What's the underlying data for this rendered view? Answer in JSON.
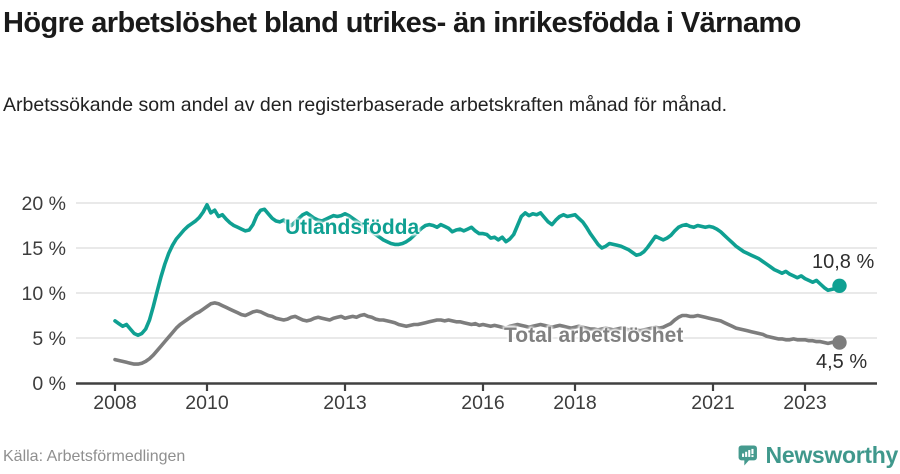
{
  "header": {
    "title": "Högre arbetslöshet bland utrikes- än inrikesfödda i Värnamo",
    "subtitle": "Arbetssökande som andel av den registerbaserade arbetskraften månad för månad."
  },
  "footer": {
    "source": "Källa: Arbetsförmedlingen",
    "brand": "Newsworthy"
  },
  "colors": {
    "foreign_born_line": "#0fa092",
    "total_line": "#7d7d7d",
    "total_label": "#808080",
    "grid": "#dcdcdc",
    "axis": "#404040",
    "tick_text": "#3d3d3d",
    "brand_teal": "#3f988c"
  },
  "chart_data": {
    "type": "line",
    "title": "Högre arbetslöshet bland utrikes- än inrikesfödda i Värnamo",
    "subtitle": "Arbetssökande som andel av den registerbaserade arbetskraften månad för månad.",
    "source": "Källa: Arbetsförmedlingen",
    "x_start_year": 2008,
    "x_frequency": "monthly",
    "x_end": "2023-10",
    "x_ticks": [
      2008,
      2010,
      2013,
      2016,
      2018,
      2021,
      2023
    ],
    "x_tick_labels": [
      "2008",
      "2010",
      "2013",
      "2016",
      "2018",
      "2021",
      "2023"
    ],
    "y_ticks": [
      0,
      5,
      10,
      15,
      20
    ],
    "y_tick_labels": [
      "0 %",
      "5 %",
      "10 %",
      "15 %",
      "20 %"
    ],
    "ylim": [
      0,
      21
    ],
    "grid": true,
    "legend_position": "inline-labels",
    "series": [
      {
        "name": "Utlandsfödda",
        "color": "#0fa092",
        "end_value": 10.8,
        "end_label": "10,8 %",
        "values": [
          6.9,
          6.6,
          6.3,
          6.5,
          6.0,
          5.5,
          5.3,
          5.5,
          6.0,
          7.0,
          8.5,
          10.2,
          11.8,
          13.2,
          14.4,
          15.3,
          16.0,
          16.5,
          17.0,
          17.4,
          17.7,
          18.0,
          18.4,
          19.0,
          19.8,
          18.9,
          19.2,
          18.5,
          18.7,
          18.2,
          17.8,
          17.5,
          17.3,
          17.1,
          16.9,
          17.0,
          17.6,
          18.6,
          19.2,
          19.3,
          18.8,
          18.3,
          18.0,
          17.9,
          18.1,
          17.7,
          17.5,
          17.9,
          18.3,
          18.7,
          18.9,
          18.6,
          18.3,
          18.1,
          18.0,
          18.2,
          18.4,
          18.6,
          18.5,
          18.6,
          18.8,
          18.6,
          18.3,
          18.0,
          17.7,
          17.4,
          17.1,
          16.8,
          16.5,
          16.2,
          15.9,
          15.7,
          15.5,
          15.4,
          15.4,
          15.5,
          15.7,
          16.0,
          16.4,
          16.8,
          17.2,
          17.5,
          17.6,
          17.5,
          17.3,
          17.6,
          17.4,
          17.2,
          16.8,
          17.0,
          17.1,
          16.9,
          17.1,
          17.3,
          16.9,
          16.6,
          16.6,
          16.5,
          16.1,
          16.2,
          15.9,
          16.2,
          15.7,
          16.0,
          16.5,
          17.5,
          18.5,
          18.9,
          18.6,
          18.8,
          18.7,
          18.9,
          18.4,
          17.9,
          17.6,
          18.1,
          18.5,
          18.7,
          18.5,
          18.6,
          18.7,
          18.3,
          17.9,
          17.3,
          16.6,
          16.0,
          15.4,
          15.0,
          15.2,
          15.5,
          15.4,
          15.3,
          15.2,
          15.0,
          14.8,
          14.5,
          14.2,
          14.3,
          14.6,
          15.1,
          15.7,
          16.3,
          16.1,
          15.9,
          16.1,
          16.4,
          16.9,
          17.3,
          17.5,
          17.6,
          17.4,
          17.3,
          17.5,
          17.4,
          17.3,
          17.4,
          17.3,
          17.1,
          16.8,
          16.4,
          16.0,
          15.6,
          15.2,
          14.9,
          14.6,
          14.4,
          14.2,
          14.0,
          13.8,
          13.5,
          13.2,
          12.9,
          12.6,
          12.4,
          12.2,
          12.4,
          12.1,
          11.9,
          11.7,
          11.9,
          11.6,
          11.4,
          11.2,
          11.4,
          11.0,
          10.6,
          10.3,
          10.4,
          10.5,
          10.8
        ]
      },
      {
        "name": "Total arbetslöshet",
        "color": "#7d7d7d",
        "end_value": 4.5,
        "end_label": "4,5 %",
        "values": [
          2.6,
          2.5,
          2.4,
          2.3,
          2.2,
          2.1,
          2.1,
          2.2,
          2.4,
          2.7,
          3.1,
          3.6,
          4.1,
          4.6,
          5.1,
          5.6,
          6.1,
          6.5,
          6.8,
          7.1,
          7.4,
          7.7,
          7.9,
          8.2,
          8.5,
          8.8,
          8.9,
          8.8,
          8.6,
          8.4,
          8.2,
          8.0,
          7.8,
          7.6,
          7.5,
          7.7,
          7.9,
          8.0,
          7.9,
          7.7,
          7.5,
          7.4,
          7.2,
          7.1,
          7.0,
          7.1,
          7.3,
          7.4,
          7.2,
          7.0,
          6.9,
          7.0,
          7.2,
          7.3,
          7.2,
          7.1,
          7.0,
          7.2,
          7.3,
          7.4,
          7.2,
          7.3,
          7.4,
          7.3,
          7.5,
          7.6,
          7.4,
          7.3,
          7.1,
          7.0,
          7.0,
          6.9,
          6.8,
          6.7,
          6.5,
          6.4,
          6.3,
          6.4,
          6.5,
          6.5,
          6.6,
          6.7,
          6.8,
          6.9,
          7.0,
          7.0,
          6.9,
          7.0,
          6.9,
          6.8,
          6.8,
          6.7,
          6.6,
          6.5,
          6.6,
          6.4,
          6.5,
          6.4,
          6.3,
          6.4,
          6.3,
          6.2,
          6.1,
          6.3,
          6.4,
          6.5,
          6.4,
          6.3,
          6.2,
          6.3,
          6.4,
          6.5,
          6.4,
          6.3,
          6.2,
          6.3,
          6.4,
          6.3,
          6.2,
          6.1,
          6.2,
          6.3,
          6.2,
          6.1,
          6.0,
          6.0,
          5.9,
          6.0,
          6.1,
          6.0,
          5.9,
          6.0,
          6.1,
          6.0,
          5.9,
          6.0,
          5.9,
          5.8,
          5.9,
          6.0,
          6.1,
          6.2,
          6.1,
          6.2,
          6.4,
          6.6,
          7.0,
          7.3,
          7.5,
          7.5,
          7.4,
          7.4,
          7.5,
          7.4,
          7.3,
          7.2,
          7.1,
          7.0,
          6.9,
          6.7,
          6.5,
          6.3,
          6.1,
          6.0,
          5.9,
          5.8,
          5.7,
          5.6,
          5.5,
          5.4,
          5.2,
          5.1,
          5.0,
          4.9,
          4.9,
          4.8,
          4.8,
          4.9,
          4.8,
          4.8,
          4.8,
          4.7,
          4.7,
          4.6,
          4.6,
          4.5,
          4.4,
          4.5,
          4.6,
          4.5
        ]
      }
    ]
  }
}
